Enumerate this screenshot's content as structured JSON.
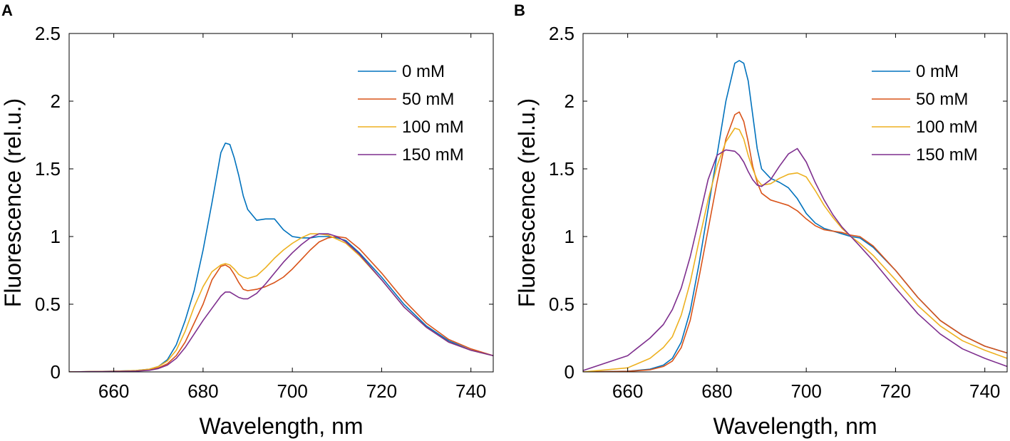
{
  "chart_data": [
    {
      "type": "line",
      "panel": "A",
      "title": "",
      "xlabel": "Wavelength, nm",
      "ylabel": "Fluorescence (rel.u.)",
      "xlim": [
        650,
        745
      ],
      "ylim": [
        0,
        2.5
      ],
      "xticks": [
        660,
        680,
        700,
        720,
        740
      ],
      "yticks": [
        0,
        0.5,
        1,
        1.5,
        2,
        2.5
      ],
      "xtick_labels": [
        "660",
        "680",
        "700",
        "720",
        "740"
      ],
      "ytick_labels": [
        "0",
        "0.5",
        "1",
        "1.5",
        "2",
        "2.5"
      ],
      "grid": false,
      "legend_position": "top-right",
      "series": [
        {
          "name": "0 mM",
          "color": "#0072BD",
          "x": [
            650,
            660,
            665,
            668,
            670,
            672,
            674,
            676,
            678,
            680,
            682,
            684,
            685,
            686,
            687,
            688,
            689,
            690,
            692,
            694,
            696,
            698,
            700,
            702,
            704,
            706,
            708,
            710,
            712,
            715,
            720,
            725,
            730,
            735,
            740,
            745
          ],
          "y": [
            0,
            0.005,
            0.01,
            0.02,
            0.04,
            0.09,
            0.2,
            0.38,
            0.6,
            0.9,
            1.25,
            1.62,
            1.69,
            1.68,
            1.58,
            1.45,
            1.3,
            1.2,
            1.12,
            1.13,
            1.13,
            1.05,
            1.0,
            0.99,
            0.99,
            1.0,
            1.0,
            0.99,
            0.97,
            0.88,
            0.7,
            0.5,
            0.34,
            0.23,
            0.16,
            0.12
          ]
        },
        {
          "name": "50 mM",
          "color": "#D95319",
          "x": [
            650,
            660,
            665,
            668,
            670,
            672,
            674,
            676,
            678,
            680,
            682,
            684,
            685,
            686,
            687,
            688,
            689,
            690,
            692,
            694,
            696,
            698,
            700,
            702,
            704,
            706,
            708,
            710,
            712,
            715,
            720,
            725,
            730,
            735,
            740,
            745
          ],
          "y": [
            0,
            0.004,
            0.008,
            0.015,
            0.03,
            0.06,
            0.12,
            0.22,
            0.36,
            0.5,
            0.68,
            0.78,
            0.79,
            0.77,
            0.72,
            0.66,
            0.61,
            0.6,
            0.61,
            0.63,
            0.66,
            0.7,
            0.76,
            0.83,
            0.9,
            0.96,
            0.99,
            1.0,
            0.99,
            0.91,
            0.73,
            0.53,
            0.36,
            0.24,
            0.17,
            0.12
          ]
        },
        {
          "name": "100 mM",
          "color": "#EDB120",
          "x": [
            650,
            660,
            665,
            668,
            670,
            672,
            674,
            676,
            678,
            680,
            682,
            684,
            685,
            686,
            687,
            688,
            689,
            690,
            692,
            694,
            696,
            698,
            700,
            702,
            704,
            706,
            708,
            710,
            712,
            715,
            720,
            725,
            730,
            735,
            740,
            745
          ],
          "y": [
            0,
            0.005,
            0.01,
            0.02,
            0.04,
            0.08,
            0.16,
            0.3,
            0.48,
            0.63,
            0.74,
            0.79,
            0.8,
            0.79,
            0.76,
            0.72,
            0.7,
            0.69,
            0.71,
            0.77,
            0.84,
            0.9,
            0.95,
            0.99,
            1.02,
            1.02,
            1.01,
            0.98,
            0.95,
            0.86,
            0.68,
            0.48,
            0.33,
            0.22,
            0.16,
            0.12
          ]
        },
        {
          "name": "150 mM",
          "color": "#7E2F8E",
          "x": [
            650,
            660,
            665,
            668,
            670,
            672,
            674,
            676,
            678,
            680,
            682,
            684,
            685,
            686,
            687,
            688,
            689,
            690,
            692,
            694,
            696,
            698,
            700,
            702,
            704,
            706,
            708,
            710,
            712,
            715,
            720,
            725,
            730,
            735,
            740,
            745
          ],
          "y": [
            0,
            0.003,
            0.006,
            0.012,
            0.025,
            0.05,
            0.1,
            0.18,
            0.28,
            0.38,
            0.47,
            0.56,
            0.59,
            0.59,
            0.57,
            0.55,
            0.54,
            0.54,
            0.58,
            0.65,
            0.73,
            0.81,
            0.88,
            0.94,
            0.99,
            1.02,
            1.02,
            1.0,
            0.96,
            0.87,
            0.68,
            0.48,
            0.33,
            0.22,
            0.16,
            0.12
          ]
        }
      ]
    },
    {
      "type": "line",
      "panel": "B",
      "title": "",
      "xlabel": "Wavelength, nm",
      "ylabel": "Fluorescence (rel.u.)",
      "xlim": [
        650,
        745
      ],
      "ylim": [
        0,
        2.5
      ],
      "xticks": [
        660,
        680,
        700,
        720,
        740
      ],
      "yticks": [
        0,
        0.5,
        1,
        1.5,
        2,
        2.5
      ],
      "xtick_labels": [
        "660",
        "680",
        "700",
        "720",
        "740"
      ],
      "ytick_labels": [
        "0",
        "0.5",
        "1",
        "1.5",
        "2",
        "2.5"
      ],
      "grid": false,
      "legend_position": "top-right",
      "series": [
        {
          "name": "0 mM",
          "color": "#0072BD",
          "x": [
            650,
            660,
            665,
            668,
            670,
            672,
            674,
            676,
            678,
            680,
            682,
            684,
            685,
            686,
            687,
            688,
            689,
            690,
            692,
            694,
            696,
            698,
            700,
            702,
            704,
            706,
            708,
            710,
            712,
            715,
            720,
            725,
            730,
            735,
            740,
            745
          ],
          "y": [
            0,
            0.005,
            0.02,
            0.05,
            0.1,
            0.22,
            0.45,
            0.8,
            1.2,
            1.6,
            2.0,
            2.28,
            2.3,
            2.28,
            2.15,
            1.9,
            1.65,
            1.5,
            1.43,
            1.4,
            1.36,
            1.28,
            1.17,
            1.1,
            1.06,
            1.04,
            1.02,
            1.0,
            0.99,
            0.92,
            0.75,
            0.55,
            0.38,
            0.27,
            0.19,
            0.14
          ]
        },
        {
          "name": "50 mM",
          "color": "#D95319",
          "x": [
            650,
            660,
            665,
            668,
            670,
            672,
            674,
            676,
            678,
            680,
            682,
            684,
            685,
            686,
            687,
            688,
            689,
            690,
            692,
            694,
            696,
            698,
            700,
            702,
            704,
            706,
            708,
            710,
            712,
            715,
            720,
            725,
            730,
            735,
            740,
            745
          ],
          "y": [
            0,
            0.004,
            0.015,
            0.04,
            0.08,
            0.18,
            0.38,
            0.7,
            1.05,
            1.4,
            1.72,
            1.9,
            1.92,
            1.85,
            1.7,
            1.52,
            1.4,
            1.32,
            1.27,
            1.25,
            1.23,
            1.19,
            1.13,
            1.08,
            1.05,
            1.04,
            1.03,
            1.01,
            1.0,
            0.93,
            0.75,
            0.55,
            0.38,
            0.27,
            0.19,
            0.14
          ]
        },
        {
          "name": "100 mM",
          "color": "#EDB120",
          "x": [
            650,
            660,
            665,
            668,
            670,
            672,
            674,
            676,
            678,
            680,
            682,
            684,
            685,
            686,
            687,
            688,
            689,
            690,
            692,
            694,
            696,
            698,
            700,
            702,
            704,
            706,
            708,
            710,
            712,
            715,
            720,
            725,
            730,
            735,
            740,
            745
          ],
          "y": [
            0,
            0.03,
            0.1,
            0.18,
            0.26,
            0.42,
            0.66,
            0.97,
            1.27,
            1.52,
            1.7,
            1.8,
            1.79,
            1.72,
            1.6,
            1.5,
            1.42,
            1.38,
            1.39,
            1.43,
            1.46,
            1.47,
            1.44,
            1.34,
            1.23,
            1.14,
            1.06,
            1.0,
            0.95,
            0.86,
            0.68,
            0.49,
            0.34,
            0.23,
            0.16,
            0.1
          ]
        },
        {
          "name": "150 mM",
          "color": "#7E2F8E",
          "x": [
            650,
            660,
            665,
            668,
            670,
            672,
            674,
            676,
            678,
            680,
            682,
            684,
            685,
            686,
            687,
            688,
            689,
            690,
            692,
            694,
            696,
            698,
            700,
            702,
            704,
            706,
            708,
            710,
            712,
            715,
            720,
            725,
            730,
            735,
            740,
            745
          ],
          "y": [
            0.01,
            0.12,
            0.25,
            0.35,
            0.46,
            0.62,
            0.85,
            1.13,
            1.42,
            1.6,
            1.64,
            1.63,
            1.6,
            1.55,
            1.48,
            1.42,
            1.38,
            1.37,
            1.42,
            1.52,
            1.61,
            1.65,
            1.55,
            1.4,
            1.27,
            1.16,
            1.07,
            1.0,
            0.93,
            0.82,
            0.62,
            0.43,
            0.28,
            0.17,
            0.1,
            0.04
          ]
        }
      ]
    }
  ],
  "panels": [
    {
      "label": "A"
    },
    {
      "label": "B"
    }
  ]
}
